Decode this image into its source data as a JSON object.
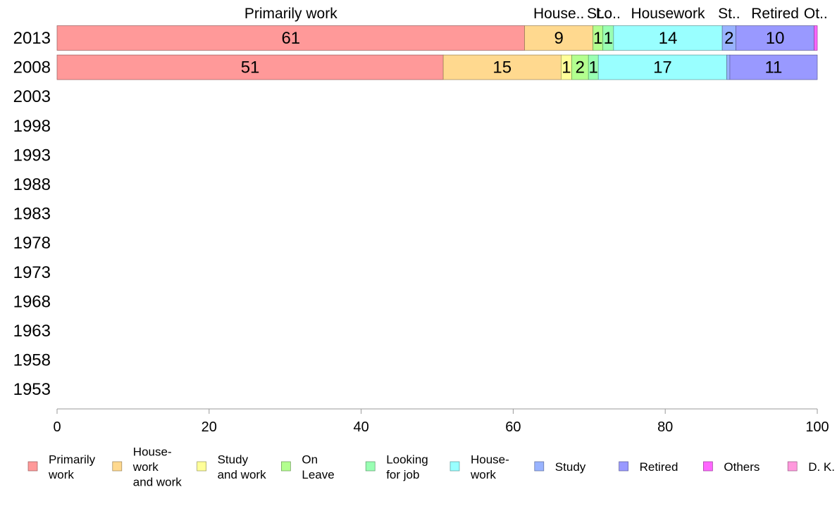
{
  "chart_data": {
    "type": "bar",
    "orientation": "horizontal",
    "stacked": true,
    "categories": [
      "2013",
      "2008",
      "2003",
      "1998",
      "1993",
      "1988",
      "1983",
      "1978",
      "1973",
      "1968",
      "1963",
      "1958",
      "1953"
    ],
    "series": [
      {
        "name": "Primarily work",
        "short_label": "Primarily work",
        "legend_label": [
          "Primarily",
          "work"
        ],
        "color": "#ff9999",
        "values": [
          61.5,
          50.8,
          null,
          null,
          null,
          null,
          null,
          null,
          null,
          null,
          null,
          null,
          null
        ],
        "labels": [
          "61",
          "51",
          "",
          "",
          "",
          "",
          "",
          "",
          "",
          "",
          "",
          "",
          ""
        ]
      },
      {
        "name": "House-work and work",
        "short_label": "House..",
        "legend_label": [
          "House-",
          "work",
          "and work"
        ],
        "color": "#ffd98f",
        "values": [
          9.0,
          15.5,
          null,
          null,
          null,
          null,
          null,
          null,
          null,
          null,
          null,
          null,
          null
        ],
        "labels": [
          "9",
          "15",
          "",
          "",
          "",
          "",
          "",
          "",
          "",
          "",
          "",
          "",
          ""
        ]
      },
      {
        "name": "Study and work",
        "short_label": "",
        "legend_label": [
          "Study",
          "and work"
        ],
        "color": "#ffff99",
        "values": [
          0,
          1.4,
          null,
          null,
          null,
          null,
          null,
          null,
          null,
          null,
          null,
          null,
          null
        ],
        "labels": [
          "",
          "1",
          "",
          "",
          "",
          "",
          "",
          "",
          "",
          "",
          "",
          "",
          ""
        ]
      },
      {
        "name": "On Leave",
        "short_label": "St..",
        "legend_label": [
          "On",
          "Leave"
        ],
        "color": "#b3ff8f",
        "values": [
          1.3,
          2.2,
          null,
          null,
          null,
          null,
          null,
          null,
          null,
          null,
          null,
          null,
          null
        ],
        "labels": [
          "1",
          "2",
          "",
          "",
          "",
          "",
          "",
          "",
          "",
          "",
          "",
          "",
          ""
        ]
      },
      {
        "name": "Looking for job",
        "short_label": "Lo..",
        "legend_label": [
          "Looking",
          "for job"
        ],
        "color": "#99ffb3",
        "values": [
          1.4,
          1.3,
          null,
          null,
          null,
          null,
          null,
          null,
          null,
          null,
          null,
          null,
          null
        ],
        "labels": [
          "1",
          "1",
          "",
          "",
          "",
          "",
          "",
          "",
          "",
          "",
          "",
          "",
          ""
        ]
      },
      {
        "name": "House-work",
        "short_label": "Housework",
        "legend_label": [
          "House-",
          "work"
        ],
        "color": "#99ffff",
        "values": [
          14.3,
          16.9,
          null,
          null,
          null,
          null,
          null,
          null,
          null,
          null,
          null,
          null,
          null
        ],
        "labels": [
          "14",
          "17",
          "",
          "",
          "",
          "",
          "",
          "",
          "",
          "",
          "",
          "",
          ""
        ]
      },
      {
        "name": "Study",
        "short_label": "St..",
        "legend_label": [
          "Study"
        ],
        "color": "#99b3ff",
        "values": [
          1.8,
          0.4,
          null,
          null,
          null,
          null,
          null,
          null,
          null,
          null,
          null,
          null,
          null
        ],
        "labels": [
          "2",
          "",
          "",
          "",
          "",
          "",
          "",
          "",
          "",
          "",
          "",
          "",
          ""
        ]
      },
      {
        "name": "Retired",
        "short_label": "Retired",
        "legend_label": [
          "Retired"
        ],
        "color": "#9999ff",
        "values": [
          10.3,
          11.5,
          null,
          null,
          null,
          null,
          null,
          null,
          null,
          null,
          null,
          null,
          null
        ],
        "labels": [
          "10",
          "11",
          "",
          "",
          "",
          "",
          "",
          "",
          "",
          "",
          "",
          "",
          ""
        ]
      },
      {
        "name": "Others",
        "short_label": "Ot..",
        "legend_label": [
          "Others"
        ],
        "color": "#ff66ff",
        "values": [
          0.4,
          0,
          null,
          null,
          null,
          null,
          null,
          null,
          null,
          null,
          null,
          null,
          null
        ],
        "labels": [
          "",
          "",
          "",
          "",
          "",
          "",
          "",
          "",
          "",
          "",
          "",
          "",
          ""
        ]
      },
      {
        "name": "D. K.",
        "short_label": "",
        "legend_label": [
          "D. K."
        ],
        "color": "#ff99dd",
        "values": [
          0,
          0,
          null,
          null,
          null,
          null,
          null,
          null,
          null,
          null,
          null,
          null,
          null
        ],
        "labels": [
          "",
          "",
          "",
          "",
          "",
          "",
          "",
          "",
          "",
          "",
          "",
          "",
          ""
        ]
      }
    ],
    "xlim": [
      0,
      100
    ],
    "xticks": [
      0,
      20,
      40,
      60,
      80,
      100
    ],
    "title": "",
    "xlabel": "",
    "ylabel": "",
    "grid": false,
    "legend": "bottom"
  }
}
